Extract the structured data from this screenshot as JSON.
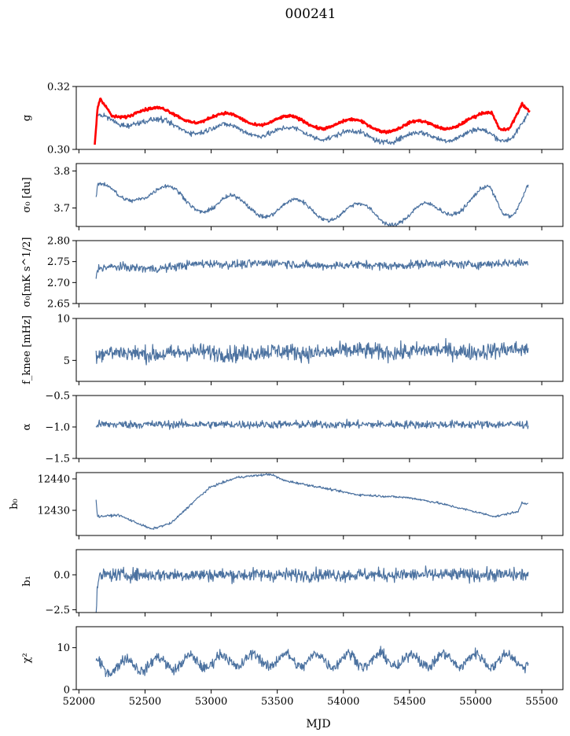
{
  "figure": {
    "title": "000241",
    "xlabel": "MJD"
  },
  "colors": {
    "series": "#4c72a0",
    "highlight": "#ff0000"
  },
  "x_axis": {
    "range": [
      51980,
      55660
    ],
    "ticks": [
      52000,
      52500,
      53000,
      53500,
      54000,
      54500,
      55000,
      55500
    ],
    "tick_labels": [
      "52000",
      "52500",
      "53000",
      "53500",
      "54000",
      "54500",
      "55000",
      "55500"
    ]
  },
  "chart_data": [
    {
      "type": "line",
      "ylabel": "g",
      "ylim": [
        0.3,
        0.32
      ],
      "yticks": [
        0.3,
        0.32
      ],
      "ytick_labels": [
        "0.30",
        "0.32"
      ],
      "series": [
        {
          "color": "#4c72a0",
          "x_start": 52130,
          "x_end": 55400,
          "baseline": 0.3065,
          "amp": 0.0016,
          "period": 480,
          "phase": 0.2,
          "noise": 0.0006,
          "anchors": [
            [
              52130,
              0.3065
            ],
            [
              52140,
              0.3095
            ],
            [
              52300,
              0.3085
            ],
            [
              52450,
              0.3098
            ],
            [
              52700,
              0.307
            ],
            [
              53300,
              0.306
            ],
            [
              54000,
              0.3045
            ],
            [
              54450,
              0.3035
            ],
            [
              55000,
              0.305
            ],
            [
              55200,
              0.3035
            ],
            [
              55280,
              0.3055
            ],
            [
              55390,
              0.311
            ]
          ]
        },
        {
          "color": "#ff0000",
          "x_start": 52120,
          "x_end": 55410,
          "baseline": 0.31,
          "amp": 0.0017,
          "period": 480,
          "phase": 0.2,
          "noise": 0.0003,
          "anchors": [
            [
              52120,
              0.3
            ],
            [
              52140,
              0.311
            ],
            [
              52160,
              0.3145
            ],
            [
              52250,
              0.31
            ],
            [
              52450,
              0.3135
            ],
            [
              52700,
              0.3105
            ],
            [
              53300,
              0.3095
            ],
            [
              54000,
              0.308
            ],
            [
              54450,
              0.307
            ],
            [
              55000,
              0.309
            ],
            [
              55120,
              0.311
            ],
            [
              55180,
              0.307
            ],
            [
              55250,
              0.308
            ],
            [
              55350,
              0.3155
            ],
            [
              55410,
              0.3115
            ]
          ]
        }
      ]
    },
    {
      "type": "line",
      "ylabel": "σ₀ [du]",
      "ylim": [
        3.65,
        3.82
      ],
      "yticks": [
        3.7,
        3.8
      ],
      "ytick_labels": [
        "3.7",
        "3.8"
      ],
      "series": [
        {
          "color": "#4c72a0",
          "x_start": 52130,
          "x_end": 55400,
          "baseline": 3.708,
          "amp": 0.026,
          "period": 480,
          "phase": 0.1,
          "noise": 0.004,
          "anchors": [
            [
              52130,
              3.71
            ],
            [
              52140,
              3.745
            ],
            [
              52300,
              3.725
            ],
            [
              52450,
              3.75
            ],
            [
              53000,
              3.71
            ],
            [
              54000,
              3.69
            ],
            [
              54500,
              3.675
            ],
            [
              55100,
              3.735
            ],
            [
              55200,
              3.685
            ],
            [
              55280,
              3.7
            ],
            [
              55390,
              3.775
            ]
          ]
        }
      ]
    },
    {
      "type": "line",
      "ylabel": "σ₀[mK s^1/2]",
      "ylim": [
        2.65,
        2.8
      ],
      "yticks": [
        2.65,
        2.7,
        2.75,
        2.8
      ],
      "ytick_labels": [
        "2.65",
        "2.70",
        "2.75",
        "2.80"
      ],
      "series": [
        {
          "color": "#4c72a0",
          "x_start": 52130,
          "x_end": 55400,
          "baseline": 2.741,
          "amp": 0.002,
          "period": 600,
          "phase": 0.0,
          "noise": 0.007,
          "anchors": [
            [
              52130,
              2.715
            ],
            [
              52150,
              2.735
            ],
            [
              52600,
              2.735
            ],
            [
              53000,
              2.745
            ],
            [
              53500,
              2.745
            ],
            [
              54000,
              2.74
            ],
            [
              55000,
              2.745
            ],
            [
              55400,
              2.745
            ]
          ]
        }
      ]
    },
    {
      "type": "line",
      "ylabel": "f_knee [mHz]",
      "ylim": [
        2.5,
        10.0
      ],
      "yticks": [
        5,
        10
      ],
      "ytick_labels": [
        "5",
        "10"
      ],
      "series": [
        {
          "color": "#4c72a0",
          "x_start": 52130,
          "x_end": 55400,
          "baseline": 5.7,
          "amp": 0.15,
          "period": 600,
          "phase": 0.0,
          "noise": 0.7,
          "anchors": [
            [
              52130,
              5.8
            ],
            [
              55400,
              6.2
            ]
          ]
        }
      ]
    },
    {
      "type": "line",
      "ylabel": "α",
      "ylim": [
        -1.5,
        -0.5
      ],
      "yticks": [
        -1.5,
        -1.0,
        -0.5
      ],
      "ytick_labels": [
        "−1.5",
        "−1.0",
        "−0.5"
      ],
      "series": [
        {
          "color": "#4c72a0",
          "x_start": 52130,
          "x_end": 55400,
          "baseline": -0.955,
          "amp": 0.0,
          "period": 600,
          "phase": 0.0,
          "noise": 0.045,
          "anchors": [
            [
              52130,
              -0.96
            ],
            [
              55400,
              -0.96
            ]
          ]
        }
      ]
    },
    {
      "type": "line",
      "ylabel": "b₀",
      "ylim": [
        12422.0,
        12442.0
      ],
      "yticks": [
        12430,
        12440
      ],
      "ytick_labels": [
        "12430",
        "12440"
      ],
      "series": [
        {
          "color": "#4c72a0",
          "x_start": 52130,
          "x_end": 55400,
          "baseline": 0,
          "amp": 0.0,
          "period": 600,
          "phase": 0.0,
          "noise": 0.25,
          "anchors": [
            [
              52130,
              12433.5
            ],
            [
              52140,
              12428.0
            ],
            [
              52300,
              12428.5
            ],
            [
              52550,
              12424.0
            ],
            [
              52700,
              12426.0
            ],
            [
              52900,
              12434.0
            ],
            [
              53000,
              12437.5
            ],
            [
              53200,
              12440.5
            ],
            [
              53450,
              12441.5
            ],
            [
              53550,
              12439.5
            ],
            [
              53800,
              12437.5
            ],
            [
              54100,
              12435.0
            ],
            [
              54500,
              12434.0
            ],
            [
              54700,
              12432.5
            ],
            [
              55000,
              12429.5
            ],
            [
              55150,
              12428.0
            ],
            [
              55250,
              12429.0
            ],
            [
              55320,
              12429.5
            ],
            [
              55350,
              12432.5
            ],
            [
              55400,
              12432.0
            ]
          ]
        }
      ]
    },
    {
      "type": "line",
      "ylabel": "b₁",
      "ylim": [
        -2.7,
        1.8
      ],
      "yticks": [
        -2.5,
        0.0
      ],
      "ytick_labels": [
        "−2.5",
        "0.0"
      ],
      "series": [
        {
          "color": "#4c72a0",
          "x_start": 52130,
          "x_end": 55400,
          "baseline": 0.0,
          "amp": 0.0,
          "period": 600,
          "phase": 0.0,
          "noise": 0.33,
          "anchors": [
            [
              52130,
              -2.5
            ],
            [
              52145,
              -0.5
            ],
            [
              52170,
              0.0
            ],
            [
              55400,
              0.0
            ]
          ]
        }
      ]
    },
    {
      "type": "line",
      "ylabel": "χ²",
      "ylim": [
        0,
        15
      ],
      "yticks": [
        0,
        10
      ],
      "ytick_labels": [
        "0",
        "10"
      ],
      "series": [
        {
          "color": "#4c72a0",
          "x_start": 52130,
          "x_end": 55400,
          "baseline": 6.5,
          "amp": 1.6,
          "period": 240,
          "phase": 0.3,
          "noise": 0.9,
          "anchors": [
            [
              52130,
              5.5
            ],
            [
              53200,
              7.0
            ],
            [
              55400,
              7.0
            ]
          ]
        }
      ]
    }
  ]
}
